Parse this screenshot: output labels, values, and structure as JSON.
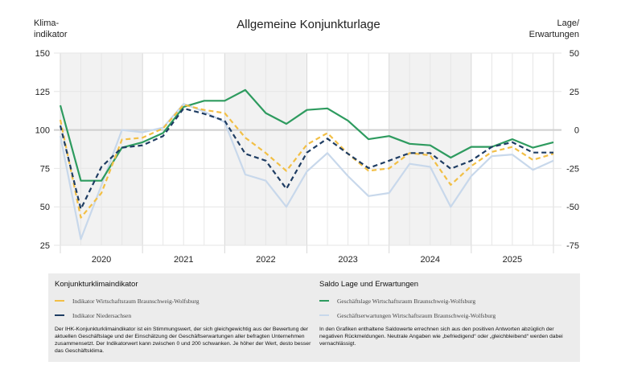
{
  "header": {
    "title": "Allgemeine Konjunkturlage",
    "left_axis_label": "Klima-\nindikator",
    "right_axis_label": "Lage/\nErwartungen"
  },
  "chart_data": {
    "type": "line",
    "title": "Allgemeine Konjunkturlage",
    "ylabel_left": "Klima-\nindikator",
    "ylabel_right": "Lage/\nErwartungen",
    "ylim_left": [
      25,
      150
    ],
    "ylim_right": [
      -75,
      50
    ],
    "yticks_left": [
      "150",
      "125",
      "100",
      "75",
      "50",
      "25"
    ],
    "yticks_right": [
      "50",
      "25",
      "0",
      "-25",
      "-50",
      "-75"
    ],
    "xtick_labels": [
      "2020",
      "2021",
      "2022",
      "2023",
      "2024",
      "2025"
    ],
    "shaded_years": [
      "2020",
      "2022",
      "2024"
    ],
    "grid": true,
    "points_per_year": 4,
    "series": [
      {
        "name": "Indikator Wirtschaftsraum Braunschweig-Wolfsburg",
        "axis": "left",
        "style": "dashed",
        "color": "#f2bf45",
        "values": [
          106.6,
          43,
          59,
          93.7,
          95,
          101,
          116.4,
          113,
          111,
          95,
          85,
          73.4,
          90.5,
          98,
          84.5,
          73.5,
          75,
          85,
          83.5,
          64.3,
          76.5,
          85.7,
          89,
          80.5,
          84.5
        ]
      },
      {
        "name": "Indikator Niedersachsen",
        "axis": "left",
        "style": "dashed",
        "color": "#1f3d63",
        "values": [
          102.8,
          48.6,
          76,
          88.5,
          90,
          96,
          114,
          110.5,
          106,
          84.5,
          80,
          61.7,
          85.3,
          94.4,
          84.5,
          75.2,
          80,
          85,
          85,
          74.8,
          80,
          89,
          92,
          85.3,
          85.3
        ]
      },
      {
        "name": "Geschäftslage Wirtschaftsraum Braunschweig-Wolfsburg",
        "axis": "right",
        "style": "solid",
        "color": "#2e9b5f",
        "values": [
          16,
          -33,
          -33,
          -11.5,
          -8,
          -2,
          15,
          19,
          19,
          26,
          11,
          4,
          13,
          14,
          6,
          -6,
          -4,
          -9,
          -10,
          -18,
          -11,
          -11,
          -6,
          -11.5,
          -8
        ]
      },
      {
        "name": "Geschäftserwartungen Wirtschaftsraum Braunschweig-Wolfsburg",
        "axis": "right",
        "style": "solid",
        "color": "#c8d8eb",
        "values": [
          -4,
          -71,
          -36,
          0,
          -1.5,
          1.5,
          17,
          12,
          5,
          -29,
          -33,
          -50,
          -27,
          -15,
          -30,
          -43,
          -41,
          -22,
          -24,
          -50,
          -30,
          -17,
          -16,
          -26,
          -20
        ]
      }
    ]
  },
  "legend": {
    "left": {
      "heading": "Konjunkturklimaindikator",
      "items": [
        "Indikator Wirtschaftsraum Braunschweig-Wolfsburg",
        "Indikator Niedersachsen"
      ],
      "description": "Der IHK-Konjunkturklimaindikator ist ein Stimmungswert, der sich gleichgewichtig aus der Bewertung der aktuellen Geschäftslage und der Einschätzung der Geschäftserwartungen aller befragten Unternehmen zusammensetzt. Der Indikatorwert kann zwischen 0 und 200 schwanken. Je höher der Wert, desto besser das Geschäftsklima."
    },
    "right": {
      "heading": "Saldo Lage und Erwartungen",
      "items": [
        "Geschäftslage Wirtschaftsraum Braunschweig-Wolfsburg",
        "Geschäftserwartungen Wirtschaftsraum Braunschweig-Wolfsburg"
      ],
      "description": "In den Grafiken enthaltene Saldowerte errechnen sich aus den positiven Antworten abzüglich der negativen Rückmeldungen. Neutrale Angaben wie „befriedigend“ oder „gleichbleibend“ werden dabei vernachlässigt."
    }
  }
}
